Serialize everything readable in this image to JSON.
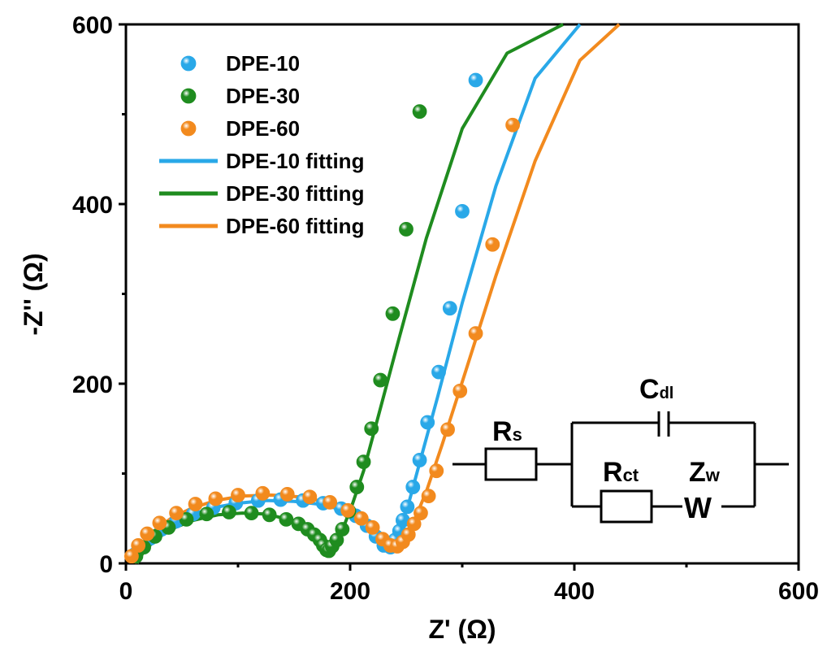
{
  "chart_data": {
    "type": "scatter",
    "xlabel": "Z' (Ω)",
    "ylabel": "-Z'' (Ω)",
    "xlim": [
      0,
      600
    ],
    "ylim": [
      0,
      600
    ],
    "xticks": [
      0,
      200,
      400,
      600
    ],
    "yticks": [
      0,
      200,
      400,
      600
    ],
    "xtick_labels": [
      "0",
      "200",
      "400",
      "600"
    ],
    "ytick_labels": [
      "0",
      "200",
      "400",
      "600"
    ],
    "grid": false,
    "legend_position": "top-left",
    "series": [
      {
        "name": "DPE-10",
        "color": "#29a8e8",
        "points": [
          [
            8,
            10
          ],
          [
            14,
            18
          ],
          [
            22,
            28
          ],
          [
            32,
            38
          ],
          [
            45,
            47
          ],
          [
            60,
            55
          ],
          [
            78,
            62
          ],
          [
            98,
            67
          ],
          [
            118,
            70
          ],
          [
            138,
            71
          ],
          [
            158,
            70
          ],
          [
            176,
            67
          ],
          [
            192,
            61
          ],
          [
            205,
            53
          ],
          [
            215,
            42
          ],
          [
            223,
            30
          ],
          [
            230,
            20
          ],
          [
            236,
            18
          ],
          [
            240,
            26
          ],
          [
            244,
            36
          ],
          [
            247,
            48
          ],
          [
            251,
            63
          ],
          [
            256,
            85
          ],
          [
            262,
            115
          ],
          [
            269,
            157
          ],
          [
            279,
            213
          ],
          [
            289,
            284
          ],
          [
            300,
            392
          ],
          [
            312,
            538
          ]
        ]
      },
      {
        "name": "DPE-30",
        "color": "#1f8c1f",
        "points": [
          [
            9,
            8
          ],
          [
            16,
            18
          ],
          [
            26,
            30
          ],
          [
            38,
            40
          ],
          [
            54,
            49
          ],
          [
            72,
            55
          ],
          [
            92,
            57
          ],
          [
            112,
            56
          ],
          [
            128,
            54
          ],
          [
            143,
            49
          ],
          [
            154,
            44
          ],
          [
            162,
            38
          ],
          [
            168,
            32
          ],
          [
            173,
            26
          ],
          [
            176,
            20
          ],
          [
            179,
            15
          ],
          [
            181,
            14
          ],
          [
            184,
            19
          ],
          [
            188,
            26
          ],
          [
            193,
            38
          ],
          [
            199,
            58
          ],
          [
            206,
            85
          ],
          [
            212,
            113
          ],
          [
            219,
            150
          ],
          [
            227,
            204
          ],
          [
            238,
            278
          ],
          [
            250,
            372
          ],
          [
            262,
            503
          ]
        ]
      },
      {
        "name": "DPE-60",
        "color": "#f28a1e",
        "points": [
          [
            5,
            8
          ],
          [
            11,
            20
          ],
          [
            19,
            33
          ],
          [
            30,
            45
          ],
          [
            45,
            56
          ],
          [
            62,
            66
          ],
          [
            80,
            72
          ],
          [
            100,
            76
          ],
          [
            122,
            78
          ],
          [
            144,
            77
          ],
          [
            164,
            74
          ],
          [
            182,
            68
          ],
          [
            198,
            59
          ],
          [
            210,
            50
          ],
          [
            220,
            40
          ],
          [
            229,
            27
          ],
          [
            236,
            20
          ],
          [
            242,
            19
          ],
          [
            247,
            24
          ],
          [
            252,
            32
          ],
          [
            257,
            44
          ],
          [
            263,
            56
          ],
          [
            270,
            75
          ],
          [
            277,
            103
          ],
          [
            287,
            149
          ],
          [
            298,
            192
          ],
          [
            312,
            256
          ],
          [
            327,
            355
          ],
          [
            345,
            488
          ]
        ]
      }
    ],
    "fitting_lines": [
      {
        "name": "DPE-10 fitting",
        "color": "#29a8e8",
        "points": [
          [
            10,
            0
          ],
          [
            12,
            8
          ],
          [
            18,
            20
          ],
          [
            28,
            33
          ],
          [
            42,
            45
          ],
          [
            58,
            54
          ],
          [
            78,
            62
          ],
          [
            100,
            67
          ],
          [
            125,
            70
          ],
          [
            150,
            69
          ],
          [
            172,
            66
          ],
          [
            192,
            60
          ],
          [
            207,
            50
          ],
          [
            218,
            38
          ],
          [
            226,
            26
          ],
          [
            232,
            18
          ],
          [
            237,
            17
          ],
          [
            240,
            24
          ],
          [
            245,
            40
          ],
          [
            252,
            66
          ],
          [
            262,
            112
          ],
          [
            278,
            185
          ],
          [
            300,
            290
          ],
          [
            330,
            420
          ],
          [
            365,
            540
          ],
          [
            405,
            600
          ]
        ]
      },
      {
        "name": "DPE-30 fitting",
        "color": "#1f8c1f",
        "points": [
          [
            10,
            0
          ],
          [
            12,
            6
          ],
          [
            18,
            16
          ],
          [
            28,
            28
          ],
          [
            42,
            39
          ],
          [
            60,
            48
          ],
          [
            82,
            54
          ],
          [
            104,
            56
          ],
          [
            124,
            55
          ],
          [
            142,
            50
          ],
          [
            156,
            43
          ],
          [
            166,
            35
          ],
          [
            173,
            26
          ],
          [
            178,
            18
          ],
          [
            181,
            13
          ],
          [
            184,
            16
          ],
          [
            188,
            25
          ],
          [
            194,
            40
          ],
          [
            202,
            66
          ],
          [
            212,
            103
          ],
          [
            226,
            168
          ],
          [
            244,
            252
          ],
          [
            268,
            362
          ],
          [
            300,
            484
          ],
          [
            340,
            568
          ],
          [
            390,
            600
          ]
        ]
      },
      {
        "name": "DPE-60 fitting",
        "color": "#f28a1e",
        "points": [
          [
            8,
            0
          ],
          [
            10,
            10
          ],
          [
            16,
            23
          ],
          [
            26,
            37
          ],
          [
            40,
            50
          ],
          [
            58,
            61
          ],
          [
            80,
            70
          ],
          [
            104,
            75
          ],
          [
            130,
            76
          ],
          [
            156,
            74
          ],
          [
            180,
            68
          ],
          [
            200,
            58
          ],
          [
            214,
            46
          ],
          [
            225,
            34
          ],
          [
            234,
            24
          ],
          [
            240,
            19
          ],
          [
            245,
            22
          ],
          [
            250,
            30
          ],
          [
            258,
            50
          ],
          [
            268,
            80
          ],
          [
            282,
            132
          ],
          [
            302,
            210
          ],
          [
            330,
            320
          ],
          [
            365,
            448
          ],
          [
            405,
            560
          ],
          [
            440,
            600
          ]
        ]
      }
    ],
    "inset_circuit": {
      "labels": {
        "rs": "R",
        "rs_sub": "s",
        "cdl": "C",
        "cdl_sub": "dl",
        "rct": "R",
        "rct_sub": "ct",
        "zw": "Z",
        "zw_sub": "w",
        "w": "W"
      }
    }
  }
}
